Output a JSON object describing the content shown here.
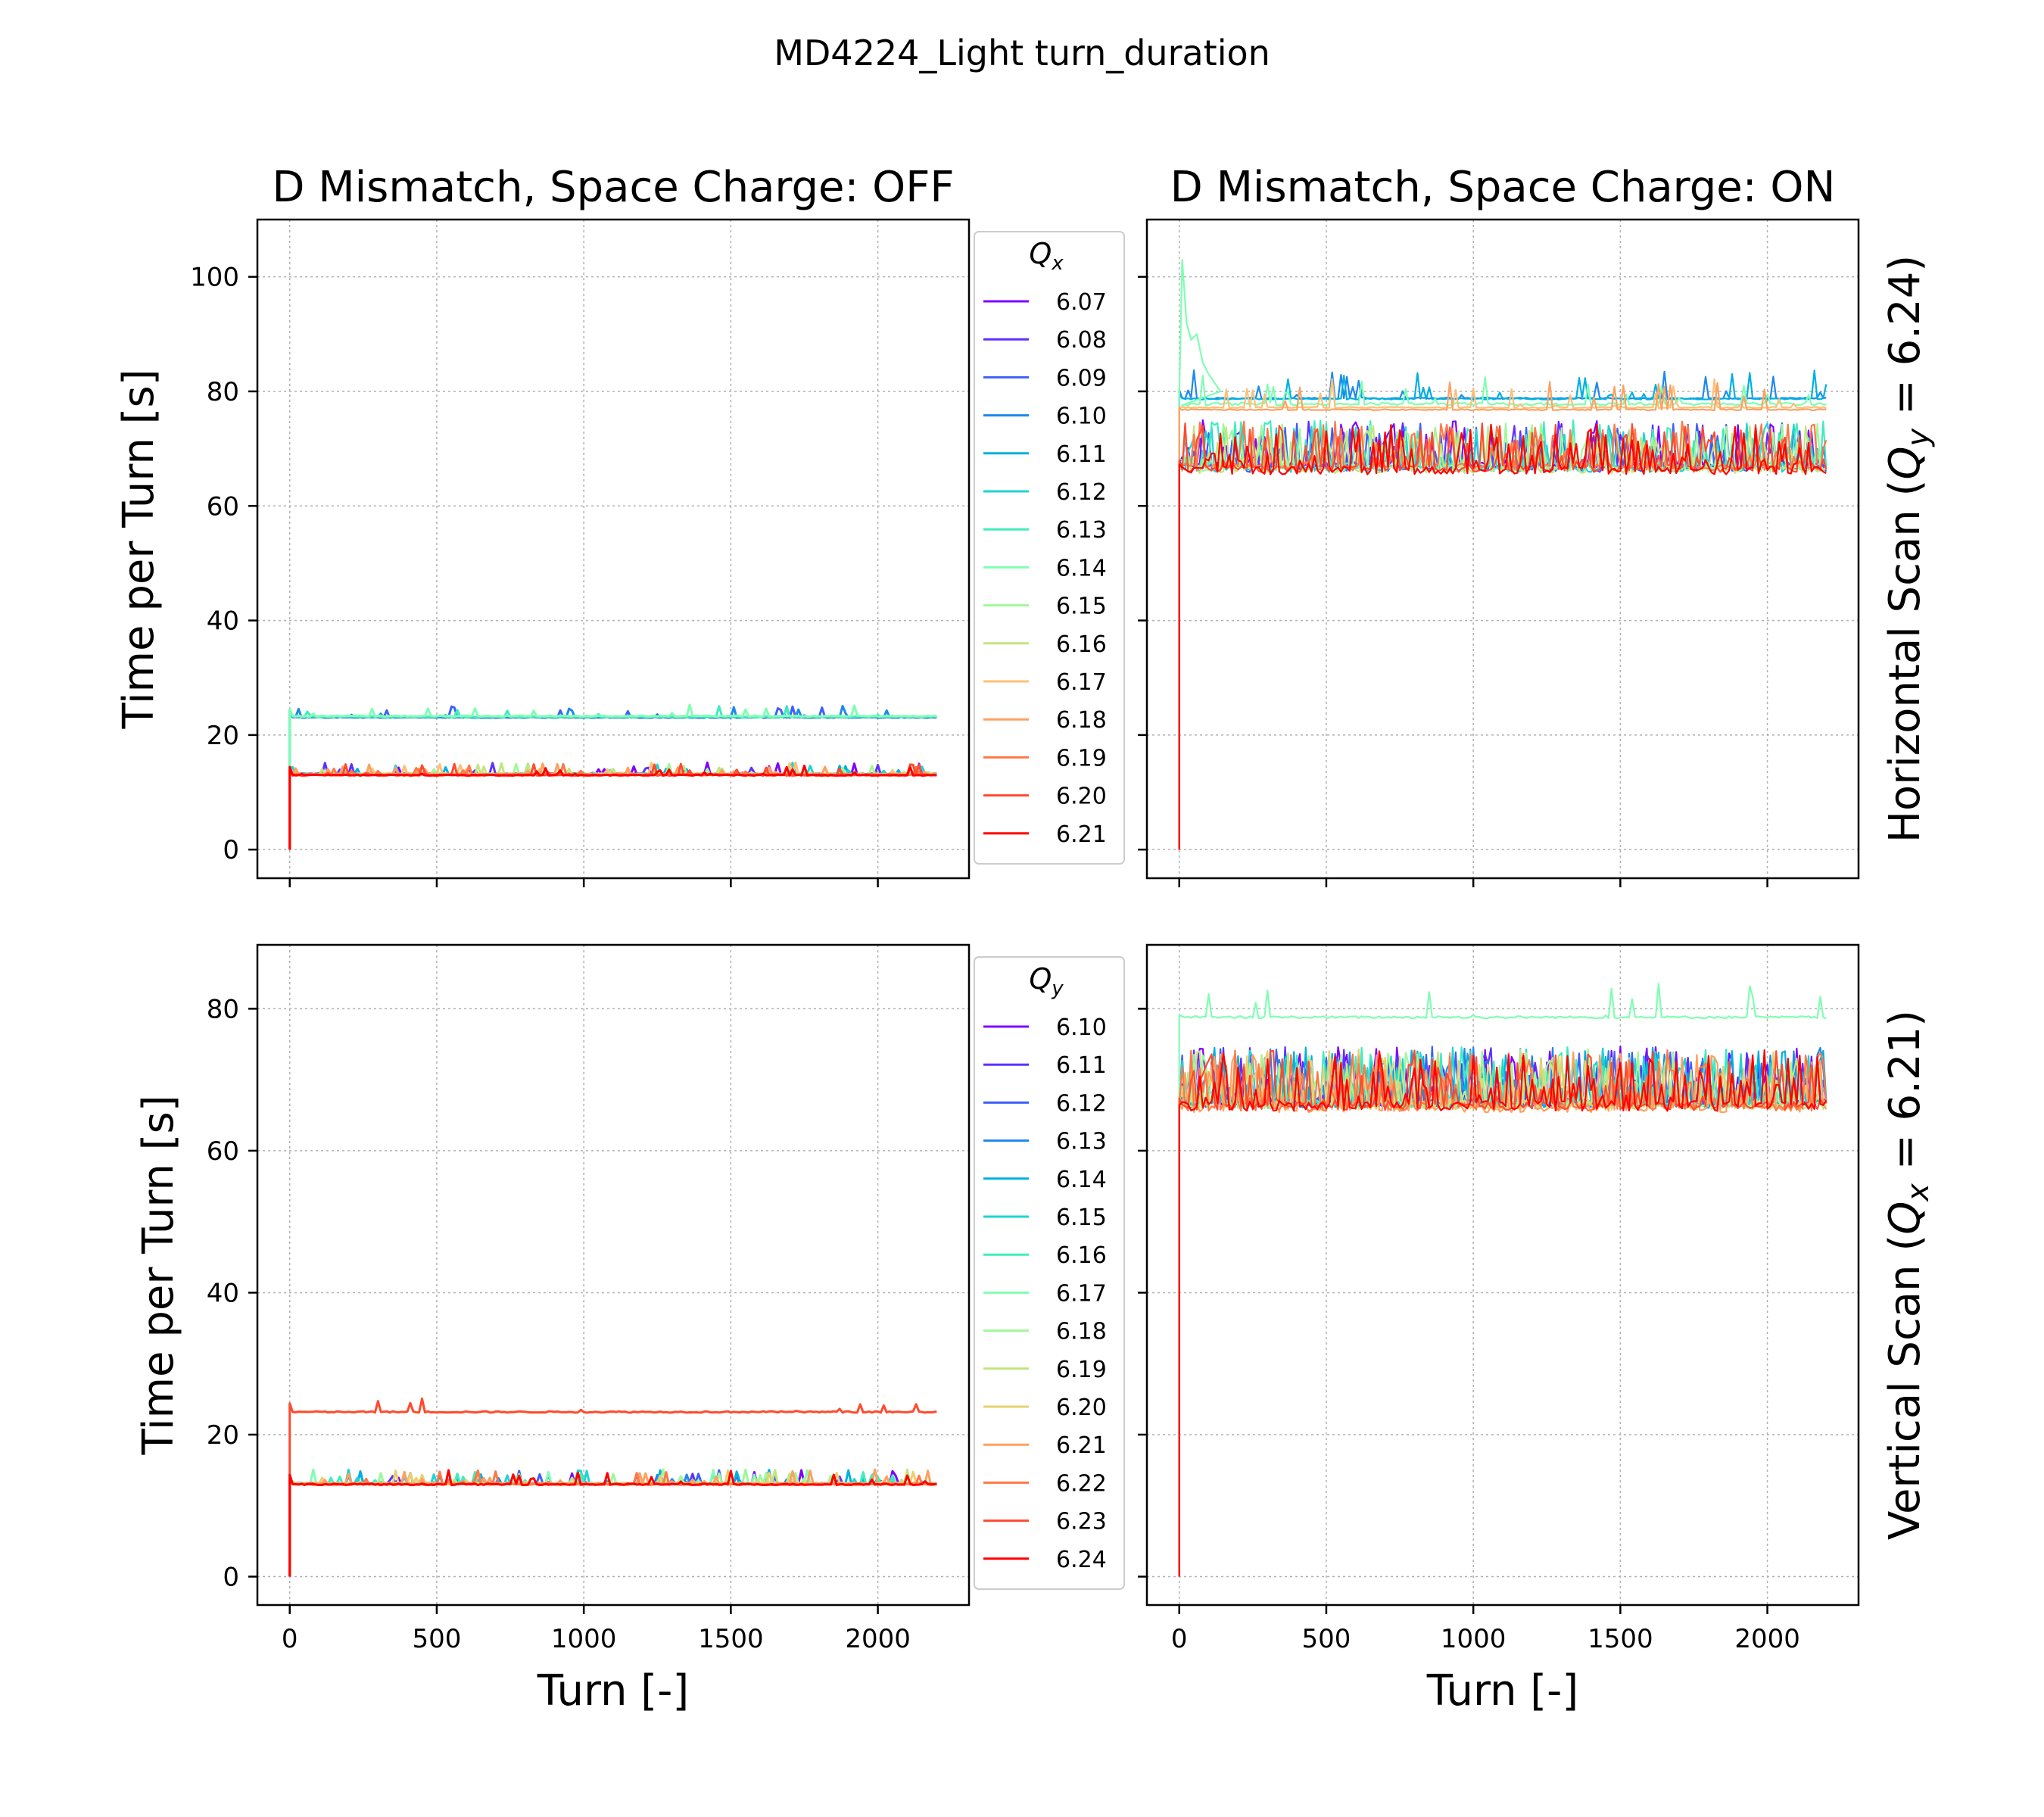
{
  "figure": {
    "suptitle": "MD4224_Light turn_duration",
    "row_labels": [
      "Horizontal Scan (Qᵧ = 6.24)",
      "Vertical Scan (Qₓ = 6.21)"
    ],
    "row_label_parts": [
      {
        "prefix": "Horizontal Scan (",
        "sym": "Q",
        "sub": "y",
        "suffix": " = 6.24)"
      },
      {
        "prefix": "Vertical Scan (",
        "sym": "Q",
        "sub": "x",
        "suffix": " = 6.21)"
      }
    ]
  },
  "chart_data": [
    {
      "type": "line",
      "title": "D Mismatch, Space Charge: OFF",
      "xlabel": "",
      "ylabel": "Time per Turn [s]",
      "xlim": [
        -110,
        2310
      ],
      "ylim": [
        -5,
        110
      ],
      "xticks": [
        0,
        500,
        1000,
        1500,
        2000
      ],
      "xtick_labels": [],
      "yticks": [
        0,
        20,
        40,
        60,
        80,
        100
      ],
      "ytick_labels": [
        "0",
        "20",
        "40",
        "60",
        "80",
        "100"
      ],
      "grid": true,
      "legend": {
        "title": "Qx",
        "title_sym": "Q",
        "title_sub": "x",
        "placement": "outside-right",
        "entries": [
          "6.07",
          "6.08",
          "6.09",
          "6.10",
          "6.11",
          "6.12",
          "6.13",
          "6.14",
          "6.15",
          "6.16",
          "6.17",
          "6.18",
          "6.19",
          "6.20",
          "6.21"
        ]
      },
      "series_colors": [
        "#8000ff",
        "#5f30fe",
        "#3e60f8",
        "#1e88ed",
        "#00b0e0",
        "#20d4d0",
        "#40ecbe",
        "#80feb2",
        "#a0f898",
        "#c0e680",
        "#fcc078",
        "#ffa060",
        "#ff7848",
        "#ff4a2e",
        "#ff0000"
      ],
      "series_levels": [
        13.2,
        13.2,
        23.1,
        23.1,
        13.1,
        13.2,
        23.2,
        23.3,
        13.2,
        13.1,
        13.2,
        13.1,
        13.1,
        13.0,
        13.0
      ],
      "series_jitter": [
        0.6,
        0.6,
        0.4,
        0.4,
        0.6,
        0.6,
        0.4,
        0.5,
        0.6,
        0.5,
        0.5,
        0.5,
        0.5,
        0.5,
        0.4
      ],
      "x_end": 2200
    },
    {
      "type": "line",
      "title": "D Mismatch, Space Charge: ON",
      "xlabel": "",
      "ylabel": "",
      "xlim": [
        -110,
        2310
      ],
      "ylim": [
        -5,
        110
      ],
      "xticks": [
        0,
        500,
        1000,
        1500,
        2000
      ],
      "xtick_labels": [],
      "yticks": [
        0,
        20,
        40,
        60,
        80,
        100
      ],
      "ytick_labels": [],
      "grid": true,
      "series_colors": [
        "#8000ff",
        "#5f30fe",
        "#3e60f8",
        "#1e88ed",
        "#00b0e0",
        "#20d4d0",
        "#40ecbe",
        "#80feb2",
        "#a0f898",
        "#c0e680",
        "#fcc078",
        "#ffa060",
        "#ff7848",
        "#ff4a2e",
        "#ff0000"
      ],
      "series_levels": [
        67,
        67,
        66.5,
        78.8,
        78.7,
        66.5,
        67,
        77.8,
        66.5,
        66.3,
        77.2,
        76.8,
        66.8,
        66.5,
        66.2
      ],
      "series_jitter": [
        3,
        3,
        3,
        0.6,
        0.6,
        3,
        3,
        1.2,
        3,
        3,
        0.5,
        0.5,
        3,
        3,
        3.5
      ],
      "x_end": 2200
    },
    {
      "type": "line",
      "title": "",
      "xlabel": "Turn [-]",
      "ylabel": "Time per Turn  [s]",
      "xlim": [
        -110,
        2310
      ],
      "ylim": [
        -4,
        89
      ],
      "xticks": [
        0,
        500,
        1000,
        1500,
        2000
      ],
      "xtick_labels": [
        "0",
        "500",
        "1000",
        "1500",
        "2000"
      ],
      "yticks": [
        0,
        20,
        40,
        60,
        80
      ],
      "ytick_labels": [
        "0",
        "20",
        "40",
        "60",
        "80"
      ],
      "grid": true,
      "legend": {
        "title": "Qy",
        "title_sym": "Q",
        "title_sub": "y",
        "placement": "outside-right",
        "entries": [
          "6.10",
          "6.11",
          "6.12",
          "6.13",
          "6.14",
          "6.15",
          "6.16",
          "6.17",
          "6.18",
          "6.19",
          "6.20",
          "6.21",
          "6.22",
          "6.23",
          "6.24"
        ]
      },
      "series_colors": [
        "#8000ff",
        "#5f30fe",
        "#3e60f8",
        "#1e88ed",
        "#00b0e0",
        "#20d4d0",
        "#40ecbe",
        "#80feb2",
        "#a0f898",
        "#c0e680",
        "#e8d070",
        "#ffa060",
        "#ff7848",
        "#ff4a2e",
        "#ff0000"
      ],
      "series_levels": [
        13.1,
        13.1,
        13.1,
        13.1,
        13.1,
        13.1,
        13.1,
        13.1,
        13.1,
        13.1,
        13.1,
        13.1,
        13.0,
        23.2,
        13.0
      ],
      "series_jitter": [
        0.6,
        0.5,
        0.5,
        0.5,
        0.5,
        0.5,
        0.5,
        0.5,
        0.6,
        0.6,
        0.6,
        0.5,
        0.5,
        0.5,
        0.5
      ],
      "x_end": 2200
    },
    {
      "type": "line",
      "title": "",
      "xlabel": "Turn [-]",
      "ylabel": "",
      "xlim": [
        -110,
        2310
      ],
      "ylim": [
        -4,
        89
      ],
      "xticks": [
        0,
        500,
        1000,
        1500,
        2000
      ],
      "xtick_labels": [
        "0",
        "500",
        "1000",
        "1500",
        "2000"
      ],
      "yticks": [
        0,
        20,
        40,
        60,
        80
      ],
      "ytick_labels": [],
      "grid": true,
      "series_colors": [
        "#8000ff",
        "#5f30fe",
        "#3e60f8",
        "#1e88ed",
        "#00b0e0",
        "#20d4d0",
        "#40ecbe",
        "#80feb2",
        "#a0f898",
        "#c0e680",
        "#e8d070",
        "#ffa060",
        "#ff7848",
        "#ff4a2e",
        "#ff0000"
      ],
      "series_levels": [
        66.8,
        66.8,
        66.7,
        66.7,
        66.6,
        66.6,
        66.6,
        78.8,
        66.5,
        66.4,
        66.3,
        66.0,
        66.2,
        66.3,
        66.3
      ],
      "series_jitter": [
        3,
        3,
        3,
        3,
        3,
        3,
        3,
        0.8,
        3,
        3,
        3,
        3,
        3,
        3,
        3.5
      ],
      "x_end": 2200
    }
  ]
}
